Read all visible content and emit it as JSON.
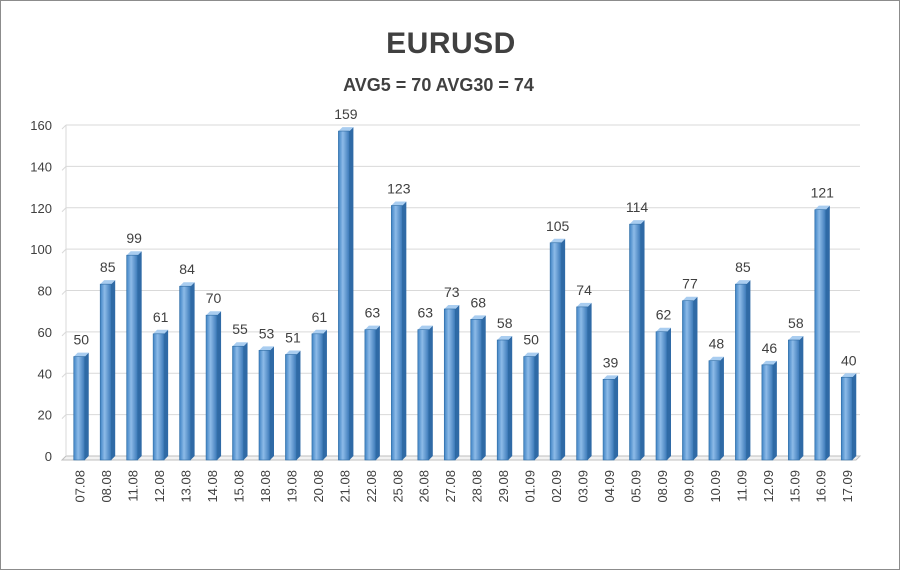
{
  "chart_data": {
    "type": "bar",
    "title": "EURUSD",
    "subtitle": "AVG5 = 70 AVG30 = 74",
    "xlabel": "",
    "ylabel": "",
    "ylim": [
      0,
      160
    ],
    "yticks": [
      0,
      20,
      40,
      60,
      80,
      100,
      120,
      140,
      160
    ],
    "grid": true,
    "legend": "none",
    "bar_color": "#5b9bd5",
    "bar_edge_color": "#2e6ca4",
    "categories": [
      "07.08",
      "08.08",
      "11.08",
      "12.08",
      "13.08",
      "14.08",
      "15.08",
      "18.08",
      "19.08",
      "20.08",
      "21.08",
      "22.08",
      "25.08",
      "26.08",
      "27.08",
      "28.08",
      "29.08",
      "01.09",
      "02.09",
      "03.09",
      "04.09",
      "05.09",
      "08.09",
      "09.09",
      "10.09",
      "11.09",
      "12.09",
      "15.09",
      "16.09",
      "17.09"
    ],
    "values": [
      50,
      85,
      99,
      61,
      84,
      70,
      55,
      53,
      51,
      61,
      159,
      63,
      123,
      63,
      73,
      68,
      58,
      50,
      105,
      74,
      39,
      114,
      62,
      77,
      48,
      85,
      46,
      58,
      121,
      40
    ]
  }
}
